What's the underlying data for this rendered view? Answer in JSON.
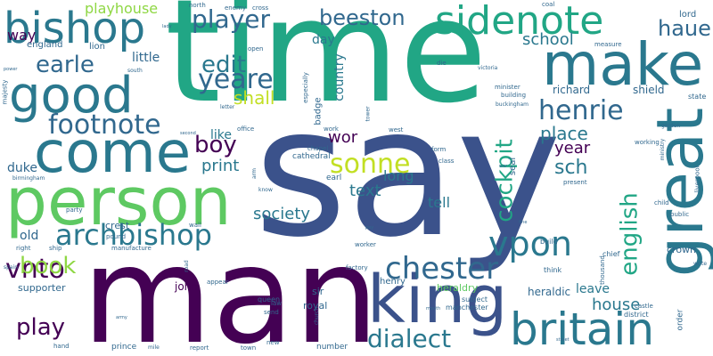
{
  "words": [
    {
      "text": "say",
      "color": "#3b528b",
      "vertical": false
    },
    {
      "text": "time",
      "color": "#21a685",
      "vertical": false
    },
    {
      "text": "man",
      "color": "#440154",
      "vertical": false
    },
    {
      "text": "person",
      "color": "#5ec962",
      "vertical": false
    },
    {
      "text": "come",
      "color": "#2a788e",
      "vertical": false
    },
    {
      "text": "king",
      "color": "#3b528b",
      "vertical": false
    },
    {
      "text": "good",
      "color": "#2a788e",
      "vertical": false
    },
    {
      "text": "make",
      "color": "#2a788e",
      "vertical": false
    },
    {
      "text": "great",
      "color": "#2a788e",
      "vertical": true
    },
    {
      "text": "britain",
      "color": "#2a788e",
      "vertical": false
    },
    {
      "text": "bishop",
      "color": "#2a788e",
      "vertical": false
    },
    {
      "text": "sidenote",
      "color": "#21a685",
      "vertical": false
    },
    {
      "text": "archbishop",
      "color": "#2a788e",
      "vertical": false
    },
    {
      "text": "chester",
      "color": "#31688e",
      "vertical": false
    },
    {
      "text": "vpon",
      "color": "#2a788e",
      "vertical": false
    },
    {
      "text": "dialect",
      "color": "#2a788e",
      "vertical": false
    },
    {
      "text": "footnote",
      "color": "#31688e",
      "vertical": false
    },
    {
      "text": "cockpit",
      "color": "#21a685",
      "vertical": true
    },
    {
      "text": "english",
      "color": "#21a685",
      "vertical": true
    },
    {
      "text": "yeare",
      "color": "#31688e",
      "vertical": false
    },
    {
      "text": "edit",
      "color": "#2a788e",
      "vertical": false
    },
    {
      "text": "player",
      "color": "#31688e",
      "vertical": false
    },
    {
      "text": "earle",
      "color": "#31688e",
      "vertical": false
    },
    {
      "text": "henrie",
      "color": "#31688e",
      "vertical": false
    },
    {
      "text": "haue",
      "color": "#31688e",
      "vertical": false
    },
    {
      "text": "beeston",
      "color": "#31688e",
      "vertical": false
    },
    {
      "text": "vnto",
      "color": "#440154",
      "vertical": false
    },
    {
      "text": "sonne",
      "color": "#c2df23",
      "vertical": false
    },
    {
      "text": "play",
      "color": "#440154",
      "vertical": false
    },
    {
      "text": "boy",
      "color": "#440154",
      "vertical": false
    },
    {
      "text": "book",
      "color": "#8fd744",
      "vertical": false
    },
    {
      "text": "shall",
      "color": "#c2df23",
      "vertical": false
    },
    {
      "text": "print",
      "color": "#2a788e",
      "vertical": false
    },
    {
      "text": "society",
      "color": "#2a788e",
      "vertical": false
    },
    {
      "text": "place",
      "color": "#2a788e",
      "vertical": false
    },
    {
      "text": "wor",
      "color": "#440154",
      "vertical": false
    },
    {
      "text": "text",
      "color": "#2a788e",
      "vertical": false
    },
    {
      "text": "long",
      "color": "#2a788e",
      "vertical": false
    },
    {
      "text": "sch",
      "color": "#2a788e",
      "vertical": false
    },
    {
      "text": "year",
      "color": "#440154",
      "vertical": false
    },
    {
      "text": "school",
      "color": "#2a788e",
      "vertical": false
    },
    {
      "text": "house",
      "color": "#2a788e",
      "vertical": false
    },
    {
      "text": "leave",
      "color": "#2a788e",
      "vertical": false
    },
    {
      "text": "tell",
      "color": "#2a788e",
      "vertical": false
    },
    {
      "text": "like",
      "color": "#2a788e",
      "vertical": false
    },
    {
      "text": "playhouse",
      "color": "#8fd744",
      "vertical": false
    },
    {
      "text": "little",
      "color": "#31688e",
      "vertical": false
    },
    {
      "text": "way",
      "color": "#440154",
      "vertical": false
    },
    {
      "text": "duke",
      "color": "#31688e",
      "vertical": false
    },
    {
      "text": "old",
      "color": "#31688e",
      "vertical": false
    },
    {
      "text": "country",
      "color": "#2a788e",
      "vertical": true
    },
    {
      "text": "day",
      "color": "#2a788e",
      "vertical": false
    },
    {
      "text": "richard",
      "color": "#31688e",
      "vertical": false
    },
    {
      "text": "shield",
      "color": "#31688e",
      "vertical": false
    },
    {
      "text": "heraldic",
      "color": "#31688e",
      "vertical": false
    },
    {
      "text": "heraldry",
      "color": "#5ec962",
      "vertical": false
    },
    {
      "text": "john",
      "color": "#440154",
      "vertical": false
    },
    {
      "text": "sir",
      "color": "#31688e",
      "vertical": false
    },
    {
      "text": "royal",
      "color": "#31688e",
      "vertical": false
    },
    {
      "text": "henry",
      "color": "#31688e",
      "vertical": false
    },
    {
      "text": "crest",
      "color": "#31688e",
      "vertical": false
    },
    {
      "text": "badge",
      "color": "#31688e",
      "vertical": true
    },
    {
      "text": "seal",
      "color": "#31688e",
      "vertical": true
    },
    {
      "text": "cathedral",
      "color": "#31688e",
      "vertical": false
    },
    {
      "text": "earl",
      "color": "#31688e",
      "vertical": false
    },
    {
      "text": "england",
      "color": "#31688e",
      "vertical": false
    },
    {
      "text": "lion",
      "color": "#31688e",
      "vertical": false
    },
    {
      "text": "prince",
      "color": "#31688e",
      "vertical": false
    },
    {
      "text": "number",
      "color": "#31688e",
      "vertical": false
    },
    {
      "text": "lord",
      "color": "#31688e",
      "vertical": false
    },
    {
      "text": "supporter",
      "color": "#31688e",
      "vertical": false
    },
    {
      "text": "order",
      "color": "#31688e",
      "vertical": true
    },
    {
      "text": "crown",
      "color": "#31688e",
      "vertical": false
    },
    {
      "text": "subject",
      "color": "#31688e",
      "vertical": false
    },
    {
      "text": "manchester",
      "color": "#31688e",
      "vertical": false
    },
    {
      "text": "queen",
      "color": "#31688e",
      "vertical": false
    },
    {
      "text": "build",
      "color": "#31688e",
      "vertical": false
    },
    {
      "text": "chief",
      "color": "#31688e",
      "vertical": false
    },
    {
      "text": "think",
      "color": "#31688e",
      "vertical": false
    },
    {
      "text": "state",
      "color": "#31688e",
      "vertical": false
    },
    {
      "text": "district",
      "color": "#31688e",
      "vertical": false
    },
    {
      "text": "coal",
      "color": "#31688e",
      "vertical": false
    },
    {
      "text": "cross",
      "color": "#31688e",
      "vertical": false
    },
    {
      "text": "north",
      "color": "#31688e",
      "vertical": false
    },
    {
      "text": "open",
      "color": "#31688e",
      "vertical": false
    },
    {
      "text": "office",
      "color": "#31688e",
      "vertical": false
    },
    {
      "text": "work",
      "color": "#31688e",
      "vertical": false
    },
    {
      "text": "west",
      "color": "#31688e",
      "vertical": false
    },
    {
      "text": "form",
      "color": "#31688e",
      "vertical": false
    },
    {
      "text": "class",
      "color": "#31688e",
      "vertical": false
    },
    {
      "text": "worker",
      "color": "#31688e",
      "vertical": false
    },
    {
      "text": "factory",
      "color": "#31688e",
      "vertical": false
    },
    {
      "text": "wall",
      "color": "#31688e",
      "vertical": false
    },
    {
      "text": "pound",
      "color": "#31688e",
      "vertical": false
    },
    {
      "text": "party",
      "color": "#31688e",
      "vertical": false
    },
    {
      "text": "right",
      "color": "#31688e",
      "vertical": false
    },
    {
      "text": "ship",
      "color": "#31688e",
      "vertical": false
    },
    {
      "text": "manufacture",
      "color": "#31688e",
      "vertical": false
    },
    {
      "text": "hand",
      "color": "#31688e",
      "vertical": false
    },
    {
      "text": "report",
      "color": "#31688e",
      "vertical": false
    },
    {
      "text": "town",
      "color": "#31688e",
      "vertical": false
    },
    {
      "text": "new",
      "color": "#31688e",
      "vertical": false
    },
    {
      "text": "send",
      "color": "#31688e",
      "vertical": false
    },
    {
      "text": "law",
      "color": "#31688e",
      "vertical": false
    },
    {
      "text": "appear",
      "color": "#31688e",
      "vertical": false
    },
    {
      "text": "building",
      "color": "#31688e",
      "vertical": false
    },
    {
      "text": "minister",
      "color": "#31688e",
      "vertical": false
    },
    {
      "text": "working",
      "color": "#31688e",
      "vertical": false
    },
    {
      "text": "die",
      "color": "#31688e",
      "vertical": false
    },
    {
      "text": "thousand",
      "color": "#31688e",
      "vertical": true
    },
    {
      "text": "liverpool",
      "color": "#31688e",
      "vertical": true
    },
    {
      "text": "child",
      "color": "#31688e",
      "vertical": false
    },
    {
      "text": "present",
      "color": "#31688e",
      "vertical": false
    },
    {
      "text": "public",
      "color": "#31688e",
      "vertical": false
    },
    {
      "text": "castle",
      "color": "#31688e",
      "vertical": false
    },
    {
      "text": "majesty",
      "color": "#31688e",
      "vertical": true
    },
    {
      "text": "especially",
      "color": "#31688e",
      "vertical": true
    },
    {
      "text": "chapel",
      "color": "#31688e",
      "vertical": false
    },
    {
      "text": "enemy",
      "color": "#31688e",
      "vertical": false
    },
    {
      "text": "measure",
      "color": "#31688e",
      "vertical": false
    },
    {
      "text": "victoria",
      "color": "#31688e",
      "vertical": false
    },
    {
      "text": "buckingham",
      "color": "#31688e",
      "vertical": false
    },
    {
      "text": "tower",
      "color": "#31688e",
      "vertical": true
    },
    {
      "text": "south",
      "color": "#31688e",
      "vertical": false
    },
    {
      "text": "garden",
      "color": "#31688e",
      "vertical": false
    },
    {
      "text": "ministry",
      "color": "#31688e",
      "vertical": true
    },
    {
      "text": "birmingham",
      "color": "#31688e",
      "vertical": false
    },
    {
      "text": "spain",
      "color": "#31688e",
      "vertical": false
    },
    {
      "text": "church",
      "color": "#31688e",
      "vertical": true
    },
    {
      "text": "know",
      "color": "#31688e",
      "vertical": false
    },
    {
      "text": "mile",
      "color": "#31688e",
      "vertical": false
    },
    {
      "text": "arm",
      "color": "#31688e",
      "vertical": true
    },
    {
      "text": "road",
      "color": "#31688e",
      "vertical": true
    },
    {
      "text": "write",
      "color": "#31688e",
      "vertical": false
    },
    {
      "text": "letter",
      "color": "#31688e",
      "vertical": false
    },
    {
      "text": "second",
      "color": "#31688e",
      "vertical": false
    },
    {
      "text": "world",
      "color": "#31688e",
      "vertical": false
    },
    {
      "text": "lady",
      "color": "#31688e",
      "vertical": false
    },
    {
      "text": "army",
      "color": "#31688e",
      "vertical": false
    },
    {
      "text": "street",
      "color": "#31688e",
      "vertical": false
    },
    {
      "text": "war",
      "color": "#31688e",
      "vertical": false
    },
    {
      "text": "power",
      "color": "#31688e",
      "vertical": false
    },
    {
      "text": "mouth",
      "color": "#31688e",
      "vertical": false
    },
    {
      "text": "fine",
      "color": "#31688e",
      "vertical": false
    },
    {
      "text": "pay",
      "color": "#31688e",
      "vertical": false
    }
  ]
}
